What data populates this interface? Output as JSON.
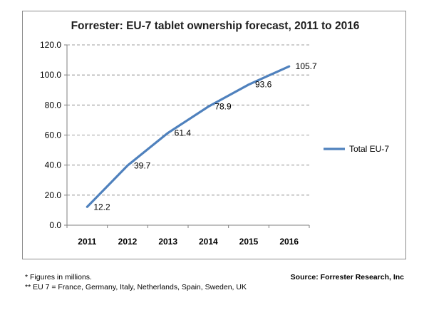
{
  "chart_data": {
    "type": "line",
    "title": "Forrester: EU-7 tablet ownership forecast, 2011 to 2016",
    "categories": [
      "2011",
      "2012",
      "2013",
      "2014",
      "2015",
      "2016"
    ],
    "series": [
      {
        "name": "Total EU-7",
        "values": [
          12.2,
          39.7,
          61.4,
          78.9,
          93.6,
          105.7
        ],
        "color": "#4f81bd"
      }
    ],
    "y_ticks": [
      "0.0",
      "20.0",
      "40.0",
      "60.0",
      "80.0",
      "100.0",
      "120.0"
    ],
    "ylim": [
      0,
      120
    ],
    "grid": "dashed horizontal",
    "legend": "right",
    "xlabel": "",
    "ylabel": ""
  },
  "footer": {
    "note_1": "* Figures in millions.",
    "note_2": "** EU 7 =  France, Germany, Italy, Netherlands, Spain, Sweden, UK",
    "source": "Source: Forrester Research, Inc"
  }
}
